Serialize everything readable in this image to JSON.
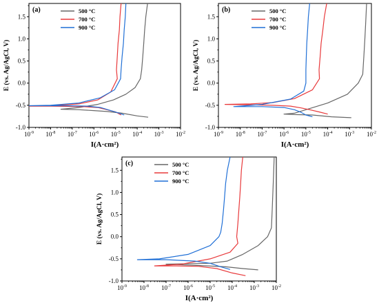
{
  "chart_data": [
    {
      "type": "line",
      "panel_label": "(a)",
      "xlabel": "I(A·cm²)",
      "ylabel": "E (vs. Ag/AgCl, V)",
      "x_scale": "log",
      "xlim": [
        1e-09,
        0.01
      ],
      "ylim": [
        -1.0,
        1.8
      ],
      "x_ticks": [
        "10-9",
        "10-8",
        "10-7",
        "10-6",
        "10-5",
        "10-4",
        "10-3",
        "10-2"
      ],
      "y_ticks": [
        "-1.0",
        "-0.5",
        "0.0",
        "0.5",
        "1.0",
        "1.5"
      ],
      "legend_position": "top-center",
      "series": [
        {
          "name": "500 °C",
          "color": "#666666",
          "points": [
            [
              0.0003,
              1.8
            ],
            [
              0.00025,
              1.5
            ],
            [
              0.00022,
              1.2
            ],
            [
              0.0002,
              0.9
            ],
            [
              0.00018,
              0.6
            ],
            [
              0.00016,
              0.3
            ],
            [
              0.00014,
              0.1
            ],
            [
              8e-05,
              -0.1
            ],
            [
              3e-05,
              -0.25
            ],
            [
              8e-06,
              -0.38
            ],
            [
              1.5e-06,
              -0.48
            ],
            [
              2e-07,
              -0.55
            ],
            [
              5e-08,
              -0.58
            ],
            [
              3e-08,
              -0.59
            ],
            [
              2e-07,
              -0.6
            ],
            [
              1e-06,
              -0.62
            ],
            [
              4e-06,
              -0.64
            ],
            [
              2e-05,
              -0.68
            ],
            [
              0.0001,
              -0.74
            ],
            [
              0.00032,
              -0.77
            ]
          ]
        },
        {
          "name": "700 °C",
          "color": "#e8383a",
          "points": [
            [
              1.8e-05,
              1.8
            ],
            [
              1.6e-05,
              1.5
            ],
            [
              1.5e-05,
              1.2
            ],
            [
              1.3e-05,
              0.9
            ],
            [
              1.2e-05,
              0.6
            ],
            [
              1.1e-05,
              0.3
            ],
            [
              1.2e-05,
              0.1
            ],
            [
              6e-06,
              -0.2
            ],
            [
              1.5e-06,
              -0.38
            ],
            [
              2e-07,
              -0.47
            ],
            [
              1e-08,
              -0.51
            ],
            [
              1e-09,
              -0.52
            ],
            [
              1e-08,
              -0.52
            ],
            [
              3e-07,
              -0.53
            ],
            [
              1.5e-06,
              -0.55
            ],
            [
              4e-06,
              -0.6
            ],
            [
              1e-05,
              -0.65
            ],
            [
              1.8e-05,
              -0.72
            ]
          ]
        },
        {
          "name": "900 °C",
          "color": "#1f6fd6",
          "points": [
            [
              3e-05,
              1.8
            ],
            [
              2.8e-05,
              1.5
            ],
            [
              2.5e-05,
              1.2
            ],
            [
              2.3e-05,
              0.9
            ],
            [
              2e-05,
              0.6
            ],
            [
              1.8e-05,
              0.3
            ],
            [
              1.7e-05,
              0.1
            ],
            [
              9e-06,
              -0.15
            ],
            [
              2e-06,
              -0.33
            ],
            [
              2e-07,
              -0.45
            ],
            [
              1e-08,
              -0.5
            ],
            [
              1e-09,
              -0.51
            ],
            [
              5e-08,
              -0.51
            ],
            [
              5e-07,
              -0.52
            ],
            [
              2e-06,
              -0.55
            ],
            [
              6e-06,
              -0.62
            ],
            [
              1.5e-05,
              -0.68
            ],
            [
              2.5e-05,
              -0.72
            ]
          ]
        }
      ]
    },
    {
      "type": "line",
      "panel_label": "(b)",
      "xlabel": "I(A·cm²)",
      "ylabel": "E (vs. Ag/AgCl, V)",
      "x_scale": "log",
      "xlim": [
        1e-09,
        0.01
      ],
      "ylim": [
        -1.0,
        1.8
      ],
      "x_ticks": [
        "10-9",
        "10-8",
        "10-7",
        "10-6",
        "10-5",
        "10-4",
        "10-3",
        "10-2"
      ],
      "y_ticks": [
        "-1.0",
        "-0.5",
        "0.0",
        "0.5",
        "1.0",
        "1.5"
      ],
      "legend_position": "top-center",
      "series": [
        {
          "name": "500 °C",
          "color": "#666666",
          "points": [
            [
              0.006,
              1.8
            ],
            [
              0.0055,
              1.4
            ],
            [
              0.005,
              1.0
            ],
            [
              0.0045,
              0.6
            ],
            [
              0.004,
              0.2
            ],
            [
              0.0025,
              0.0
            ],
            [
              0.0008,
              -0.25
            ],
            [
              0.0001,
              -0.45
            ],
            [
              1e-05,
              -0.6
            ],
            [
              3e-06,
              -0.68
            ],
            [
              1e-06,
              -0.7
            ],
            [
              3e-06,
              -0.71
            ],
            [
              2e-05,
              -0.72
            ],
            [
              0.00015,
              -0.76
            ],
            [
              0.0012,
              -0.78
            ]
          ]
        },
        {
          "name": "700 °C",
          "color": "#e8383a",
          "points": [
            [
              9e-05,
              1.8
            ],
            [
              7e-05,
              1.5
            ],
            [
              6e-05,
              1.2
            ],
            [
              5e-05,
              0.9
            ],
            [
              4.5e-05,
              0.6
            ],
            [
              4e-05,
              0.3
            ],
            [
              4.2e-05,
              0.1
            ],
            [
              2e-05,
              -0.15
            ],
            [
              3e-06,
              -0.35
            ],
            [
              3e-07,
              -0.44
            ],
            [
              3e-08,
              -0.47
            ],
            [
              2e-09,
              -0.48
            ],
            [
              3e-08,
              -0.49
            ],
            [
              3e-07,
              -0.5
            ],
            [
              2e-06,
              -0.52
            ],
            [
              6e-06,
              -0.56
            ],
            [
              1.5e-05,
              -0.6
            ],
            [
              4e-05,
              -0.65
            ],
            [
              0.0001,
              -0.7
            ]
          ]
        },
        {
          "name": "900 °C",
          "color": "#1f6fd6",
          "points": [
            [
              1.5e-05,
              1.8
            ],
            [
              1.3e-05,
              1.5
            ],
            [
              1.2e-05,
              1.2
            ],
            [
              1.1e-05,
              0.9
            ],
            [
              1.05e-05,
              0.6
            ],
            [
              1e-05,
              0.3
            ],
            [
              1e-05,
              0.0
            ],
            [
              8e-06,
              -0.18
            ],
            [
              2e-06,
              -0.36
            ],
            [
              1e-07,
              -0.48
            ],
            [
              1e-08,
              -0.52
            ],
            [
              5e-09,
              -0.53
            ],
            [
              1e-07,
              -0.53
            ],
            [
              1e-06,
              -0.55
            ],
            [
              3e-06,
              -0.6
            ],
            [
              6e-06,
              -0.66
            ],
            [
              1e-05,
              -0.72
            ],
            [
              2e-05,
              -0.76
            ]
          ]
        }
      ]
    },
    {
      "type": "line",
      "panel_label": "(c)",
      "xlabel": "I(A·cm²)",
      "ylabel": "E (vs. Ag/AgCl, V)",
      "x_scale": "log",
      "xlim": [
        1e-09,
        0.01
      ],
      "ylim": [
        -1.0,
        1.8
      ],
      "x_ticks": [
        "10-9",
        "10-8",
        "10-7",
        "10-6",
        "10-5",
        "10-4",
        "10-3",
        "10-2"
      ],
      "y_ticks": [
        "-1.0",
        "-0.5",
        "0.0",
        "0.5",
        "1.0",
        "1.5"
      ],
      "legend_position": "top-center",
      "series": [
        {
          "name": "500 °C",
          "color": "#666666",
          "points": [
            [
              0.008,
              1.8
            ],
            [
              0.0075,
              1.4
            ],
            [
              0.007,
              1.0
            ],
            [
              0.0065,
              0.6
            ],
            [
              0.006,
              0.2
            ],
            [
              0.004,
              0.0
            ],
            [
              0.0015,
              -0.2
            ],
            [
              0.0003,
              -0.4
            ],
            [
              6e-05,
              -0.55
            ],
            [
              1e-05,
              -0.6
            ],
            [
              1e-07,
              -0.62
            ],
            [
              3e-07,
              -0.63
            ],
            [
              3e-06,
              -0.65
            ],
            [
              5e-05,
              -0.68
            ],
            [
              0.0003,
              -0.72
            ],
            [
              0.0015,
              -0.75
            ]
          ]
        },
        {
          "name": "700 °C",
          "color": "#e8383a",
          "points": [
            [
              0.0003,
              1.8
            ],
            [
              0.00026,
              1.5
            ],
            [
              0.00024,
              1.2
            ],
            [
              0.00022,
              0.9
            ],
            [
              0.0002,
              0.6
            ],
            [
              0.00018,
              0.3
            ],
            [
              0.00016,
              0.0
            ],
            [
              0.00018,
              -0.15
            ],
            [
              8e-05,
              -0.35
            ],
            [
              1e-05,
              -0.5
            ],
            [
              5e-07,
              -0.62
            ],
            [
              3e-08,
              -0.66
            ],
            [
              3e-07,
              -0.66
            ],
            [
              3e-06,
              -0.67
            ],
            [
              2e-05,
              -0.72
            ],
            [
              0.0001,
              -0.82
            ],
            [
              0.0004,
              -0.88
            ]
          ]
        },
        {
          "name": "900 °C",
          "color": "#1f6fd6",
          "points": [
            [
              8e-05,
              1.8
            ],
            [
              6e-05,
              1.5
            ],
            [
              5e-05,
              1.2
            ],
            [
              4.5e-05,
              0.9
            ],
            [
              4e-05,
              0.6
            ],
            [
              3.5e-05,
              0.3
            ],
            [
              3e-05,
              0.1
            ],
            [
              2.5e-05,
              0.0
            ],
            [
              1e-05,
              -0.2
            ],
            [
              1e-06,
              -0.4
            ],
            [
              5e-08,
              -0.5
            ],
            [
              5e-09,
              -0.52
            ],
            [
              1e-07,
              -0.52
            ],
            [
              2e-06,
              -0.55
            ],
            [
              1e-05,
              -0.6
            ],
            [
              3e-05,
              -0.68
            ],
            [
              8e-05,
              -0.74
            ]
          ]
        }
      ]
    }
  ]
}
